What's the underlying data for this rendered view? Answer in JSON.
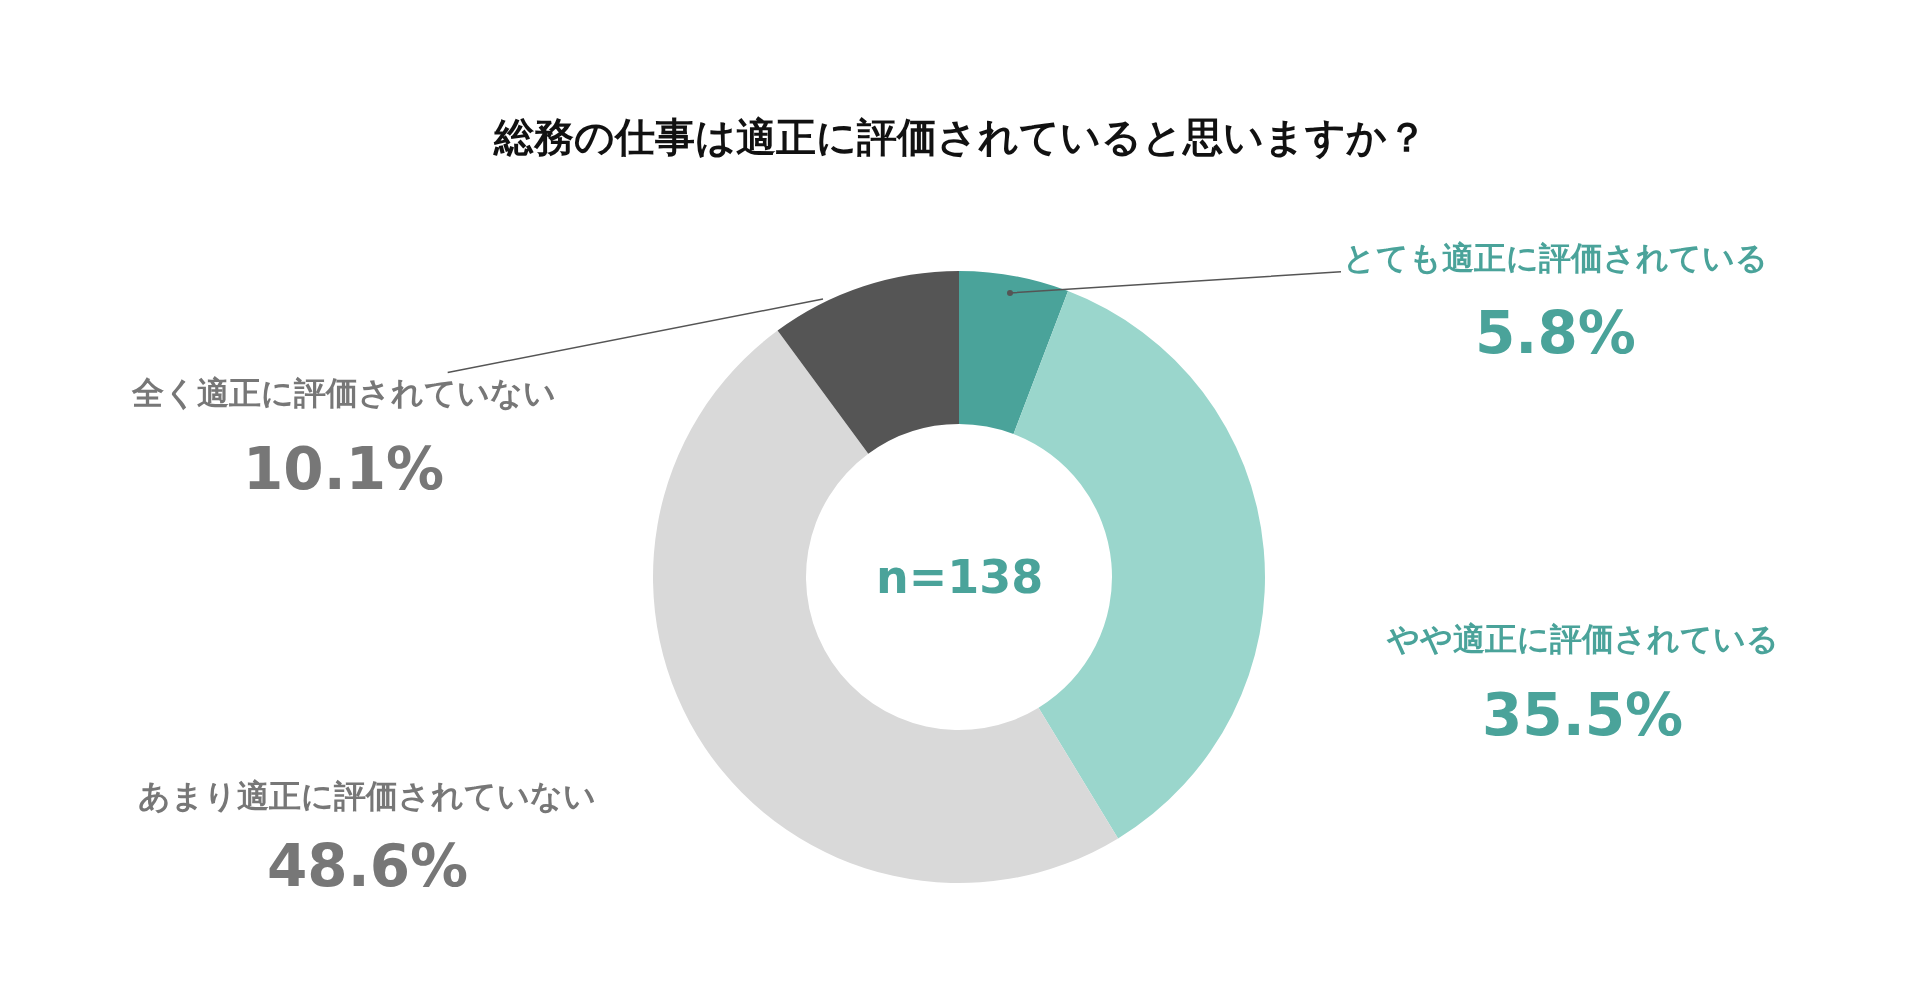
{
  "chart_data": {
    "type": "donut",
    "title": "総務の仕事は適正に評価されていると思いますか？",
    "categories": [
      "とても適正に評価されている",
      "やや適正に評価されている",
      "あまり適正に評価されていない",
      "全く適正に評価されていない"
    ],
    "values": [
      5.8,
      35.5,
      48.6,
      10.1
    ],
    "colors": [
      "#4aa39a",
      "#9ad6cc",
      "#d9d9d9",
      "#555555"
    ],
    "value_labels": [
      "5.8%",
      "35.5%",
      "48.6%",
      "10.1%"
    ],
    "annotations": [
      "n=138"
    ],
    "legend": false
  }
}
